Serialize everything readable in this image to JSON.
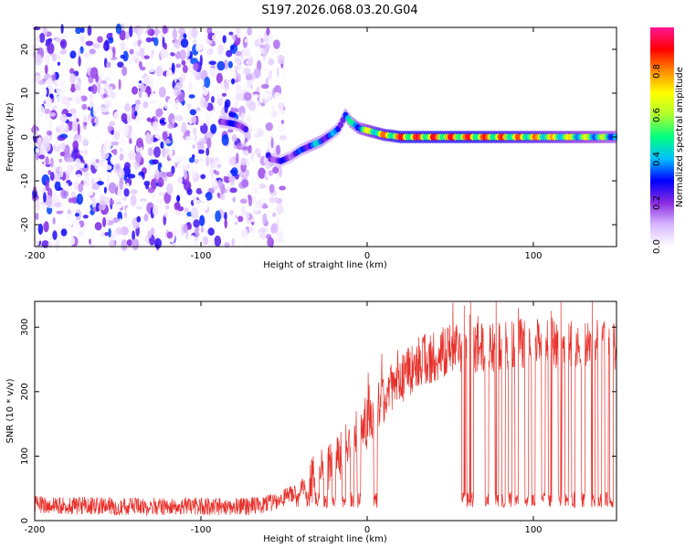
{
  "figure_title": "S197.2026.068.03.20.G04",
  "chart_data": [
    {
      "type": "heatmap",
      "title": "S197.2026.068.03.20.G04",
      "xlabel": "Height of straight line (km)",
      "ylabel": "Frequency (Hz)",
      "xlim": [
        -200,
        150
      ],
      "ylim": [
        -25,
        25
      ],
      "x_ticks": [
        -200,
        -100,
        0,
        100
      ],
      "y_ticks": [
        -20,
        -10,
        0,
        10,
        20
      ],
      "colorbar": {
        "label": "Normalized spectral amplitude",
        "range": [
          0.0,
          1.0
        ],
        "ticks": [
          0.0,
          0.2,
          0.4,
          0.6,
          0.8
        ],
        "tick_labels": [
          "0.0",
          "0.2",
          "0.4",
          "0.6",
          "0.8"
        ],
        "colors": [
          "#ffffff",
          "#d8b8ff",
          "#8a2be2",
          "#0000ff",
          "#00bfff",
          "#00ff7f",
          "#adff2f",
          "#ffff00",
          "#ff8c00",
          "#ff0000",
          "#ff1493"
        ]
      },
      "ridge": {
        "description": "peak frequency vs height",
        "x": [
          -88,
          -80,
          -76,
          -68,
          -58,
          -52,
          -46,
          -40,
          -34,
          -28,
          -22,
          -17,
          -13,
          -10,
          -5,
          0,
          5,
          10,
          20,
          40,
          60,
          80,
          100,
          120,
          150
        ],
        "y": [
          3.5,
          3.0,
          2.5,
          0.5,
          -5.0,
          -5.5,
          -4.5,
          -3.0,
          -2.0,
          -1.0,
          0.5,
          2.0,
          5.0,
          3.5,
          2.0,
          1.5,
          1.0,
          0.5,
          0.0,
          0.0,
          0.0,
          0.0,
          0.0,
          0.0,
          0.0
        ],
        "amplitude": [
          0.35,
          0.3,
          0.35,
          0.25,
          0.3,
          0.3,
          0.3,
          0.35,
          0.45,
          0.45,
          0.4,
          0.4,
          0.45,
          0.5,
          0.6,
          0.7,
          0.8,
          0.85,
          0.95,
          0.95,
          0.95,
          0.9,
          0.85,
          0.75,
          0.6
        ]
      },
      "noise_region_x": [
        -200,
        -50
      ]
    },
    {
      "type": "line",
      "xlabel": "Height of straight line (km)",
      "ylabel": "SNR (10 * v/v)",
      "xlim": [
        -200,
        150
      ],
      "ylim": [
        0,
        340
      ],
      "x_ticks": [
        -200,
        -100,
        0,
        100
      ],
      "y_ticks": [
        0,
        100,
        200,
        300
      ],
      "line_color": "#e8302a",
      "trend": {
        "x": [
          -200,
          -150,
          -100,
          -70,
          -60,
          -50,
          -40,
          -30,
          -20,
          -10,
          0,
          10,
          20,
          30,
          50,
          80,
          100,
          120,
          150
        ],
        "y": [
          25,
          22,
          22,
          22,
          25,
          35,
          50,
          70,
          90,
          120,
          150,
          190,
          220,
          245,
          265,
          270,
          275,
          275,
          270
        ]
      },
      "dropouts_x": [
        -42,
        -36,
        -30,
        -25,
        -20,
        -14,
        -9,
        -5,
        5,
        58,
        61,
        63,
        72,
        78,
        82,
        86,
        90,
        96,
        100,
        106,
        110,
        116,
        120,
        124,
        130,
        136,
        140,
        144,
        147
      ]
    }
  ]
}
